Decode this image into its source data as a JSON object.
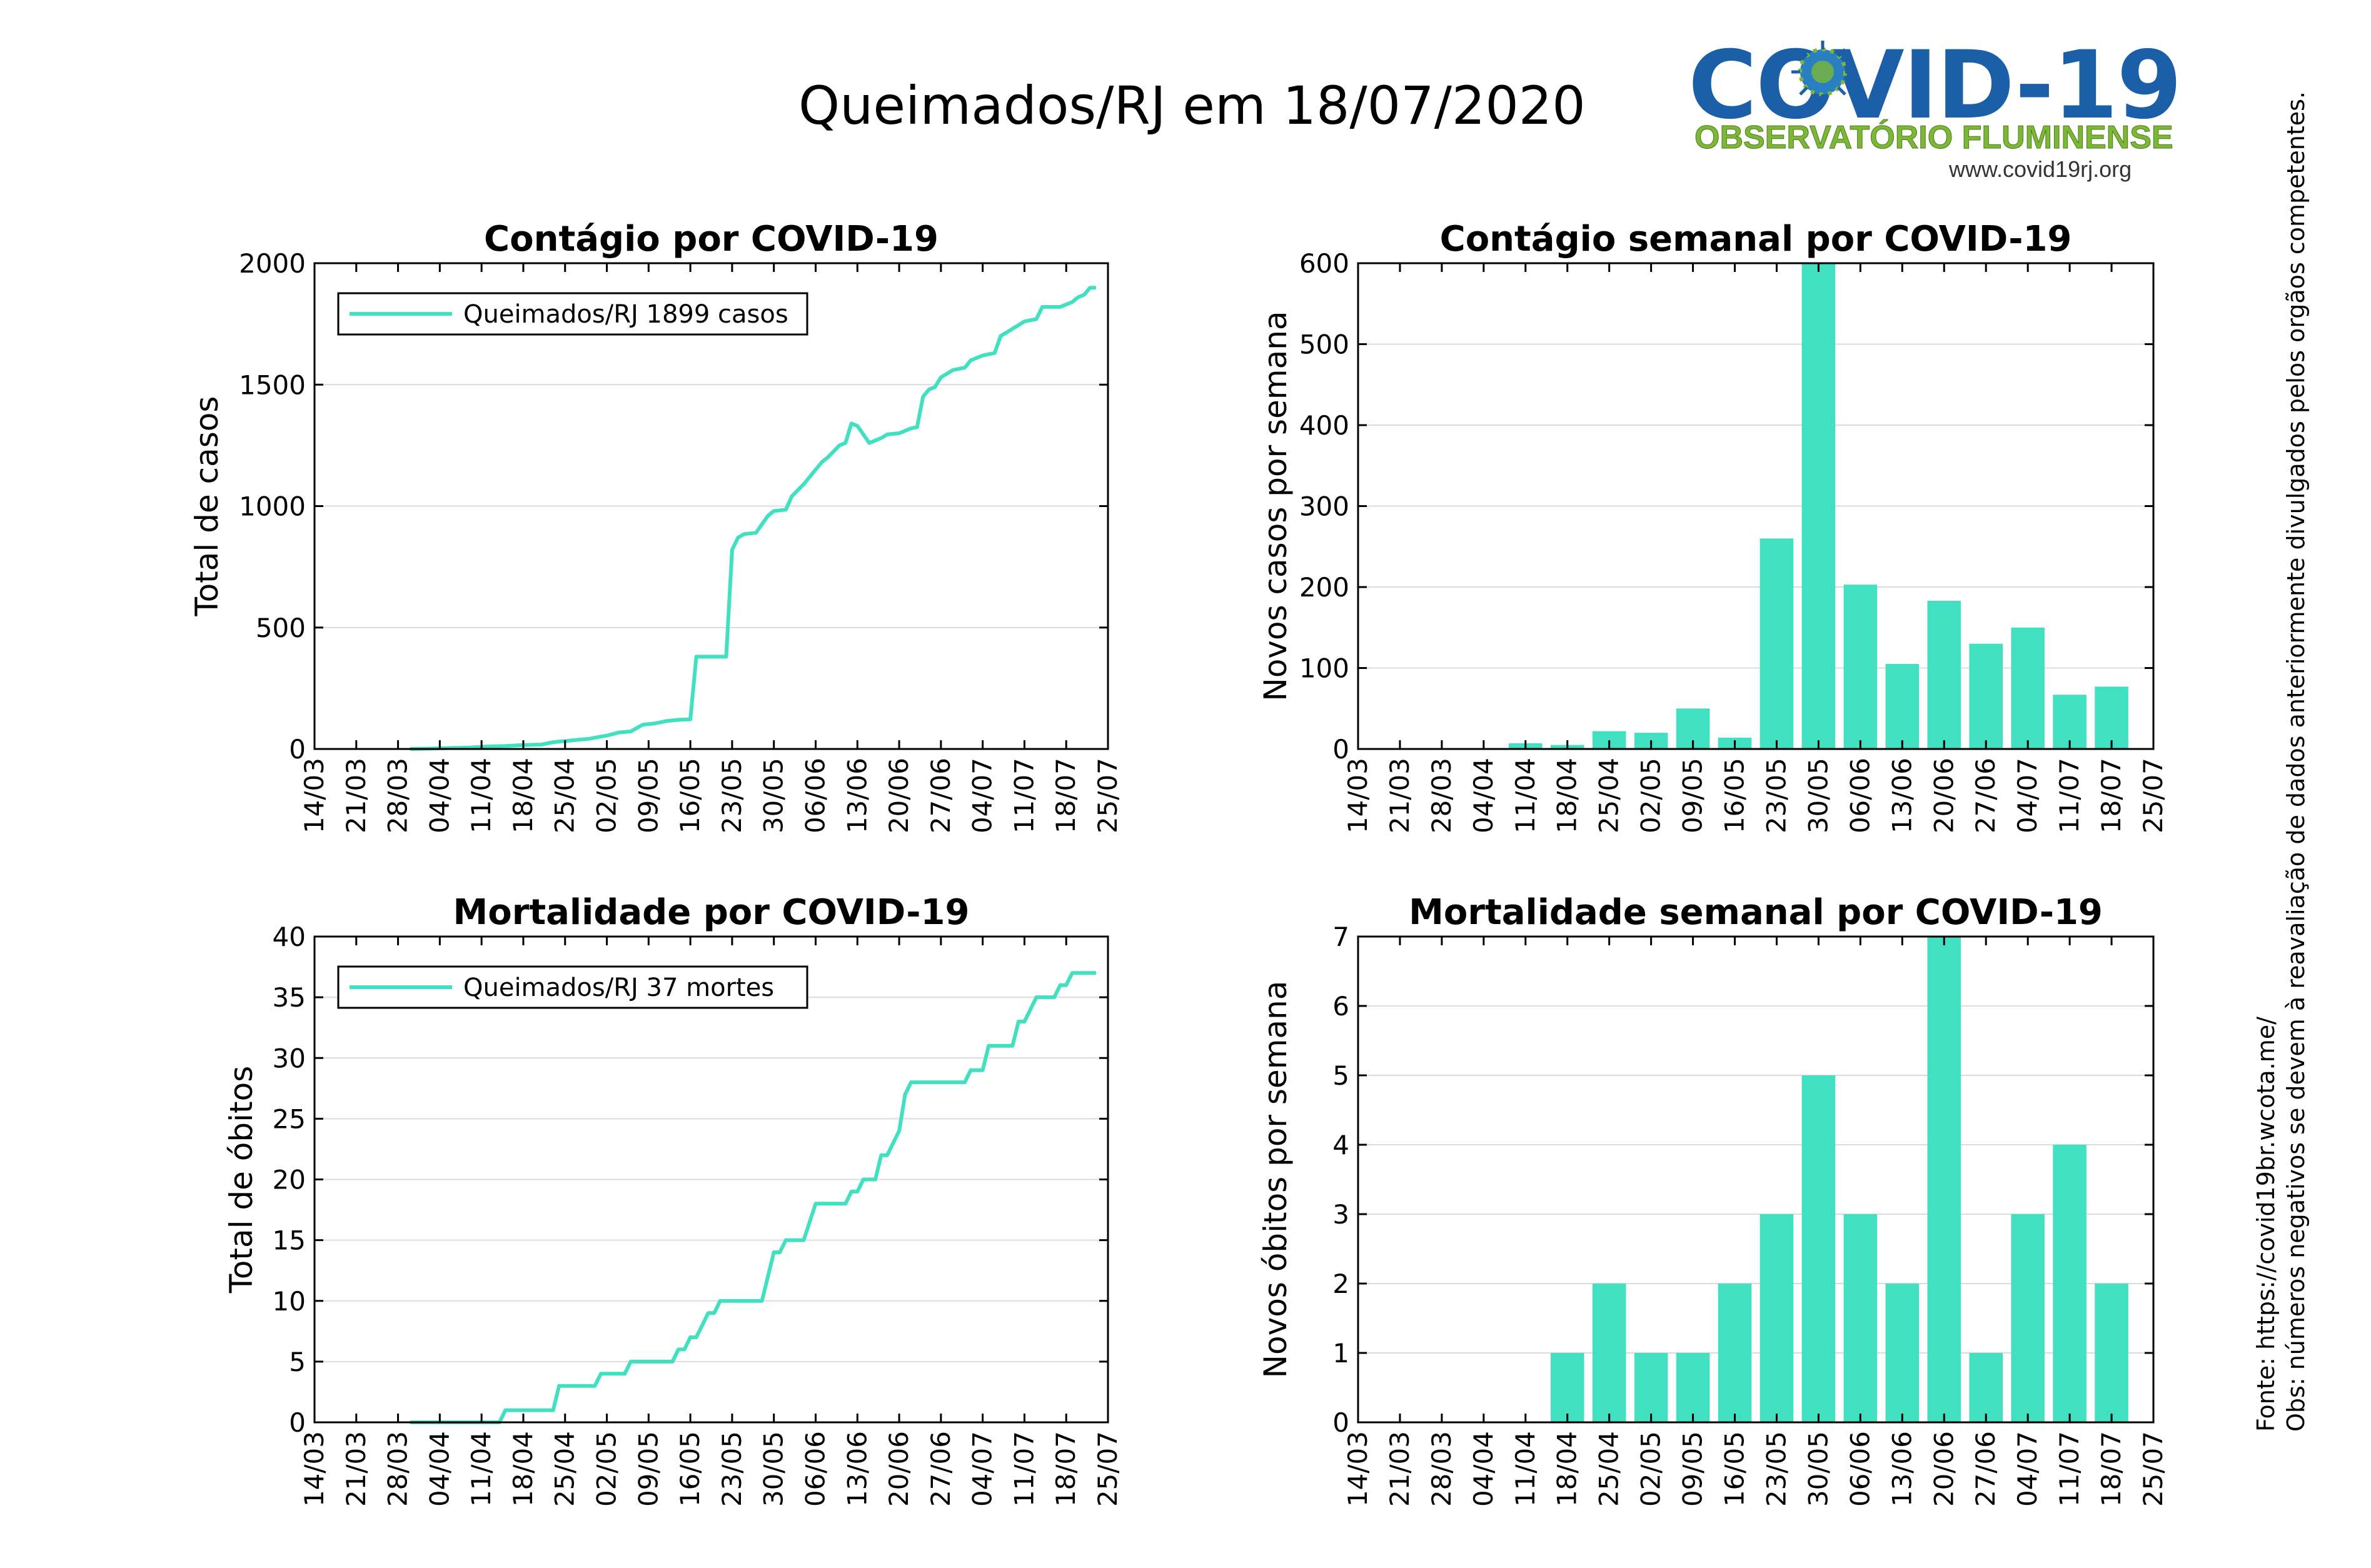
{
  "page": {
    "title": "Queimados/RJ em 18/07/2020",
    "logo": {
      "main_text": "COVID-19",
      "subtitle": "OBSERVATÓRIO FLUMINENSE",
      "url": "www.covid19rj.org",
      "icon": "virus-icon"
    },
    "source_note": "Fonte: https://covid19br.wcota.me/",
    "obs_note": "Obs: números negativos se devem à reavaliação de dados anteriormente divulgados pelos orgãos competentes."
  },
  "colors": {
    "series": "#40e0c0",
    "grid": "#dcdcdc",
    "axis": "#000000"
  },
  "chart_data": [
    {
      "id": "cases-cumulative",
      "type": "line",
      "title": "Contágio por COVID-19",
      "ylabel": "Total de casos",
      "xlabel": "",
      "x_tick_labels": [
        "14/03",
        "21/03",
        "28/03",
        "04/04",
        "11/04",
        "18/04",
        "25/04",
        "02/05",
        "09/05",
        "16/05",
        "23/05",
        "30/05",
        "06/06",
        "13/06",
        "20/06",
        "27/06",
        "04/07",
        "11/07",
        "18/07",
        "25/07"
      ],
      "xlim": [
        "2020-03-14",
        "2020-07-25"
      ],
      "ylim": [
        0,
        2000
      ],
      "y_ticks": [
        0,
        500,
        1000,
        1500,
        2000
      ],
      "grid": true,
      "legend": {
        "position": "top-left",
        "label": "Queimados/RJ  1899 casos"
      },
      "series": [
        {
          "name": "Queimados/RJ  1899 casos",
          "points": [
            [
              "2020-03-30",
              0
            ],
            [
              "2020-04-03",
              2
            ],
            [
              "2020-04-06",
              4
            ],
            [
              "2020-04-09",
              6
            ],
            [
              "2020-04-12",
              10
            ],
            [
              "2020-04-15",
              12
            ],
            [
              "2020-04-18",
              16
            ],
            [
              "2020-04-21",
              18
            ],
            [
              "2020-04-23",
              28
            ],
            [
              "2020-04-26",
              35
            ],
            [
              "2020-04-29",
              42
            ],
            [
              "2020-05-02",
              55
            ],
            [
              "2020-05-04",
              68
            ],
            [
              "2020-05-06",
              72
            ],
            [
              "2020-05-08",
              100
            ],
            [
              "2020-05-10",
              105
            ],
            [
              "2020-05-12",
              115
            ],
            [
              "2020-05-14",
              120
            ],
            [
              "2020-05-16",
              122
            ],
            [
              "2020-05-17",
              380
            ],
            [
              "2020-05-21",
              380
            ],
            [
              "2020-05-22",
              380
            ],
            [
              "2020-05-23",
              820
            ],
            [
              "2020-05-24",
              870
            ],
            [
              "2020-05-25",
              885
            ],
            [
              "2020-05-27",
              890
            ],
            [
              "2020-05-29",
              960
            ],
            [
              "2020-05-30",
              980
            ],
            [
              "2020-06-01",
              985
            ],
            [
              "2020-06-02",
              1040
            ],
            [
              "2020-06-04",
              1090
            ],
            [
              "2020-06-05",
              1120
            ],
            [
              "2020-06-07",
              1180
            ],
            [
              "2020-06-08",
              1200
            ],
            [
              "2020-06-10",
              1250
            ],
            [
              "2020-06-11",
              1260
            ],
            [
              "2020-06-12",
              1340
            ],
            [
              "2020-06-13",
              1330
            ],
            [
              "2020-06-15",
              1260
            ],
            [
              "2020-06-17",
              1280
            ],
            [
              "2020-06-18",
              1295
            ],
            [
              "2020-06-20",
              1300
            ],
            [
              "2020-06-22",
              1320
            ],
            [
              "2020-06-23",
              1325
            ],
            [
              "2020-06-24",
              1450
            ],
            [
              "2020-06-25",
              1480
            ],
            [
              "2020-06-26",
              1490
            ],
            [
              "2020-06-27",
              1530
            ],
            [
              "2020-06-29",
              1560
            ],
            [
              "2020-07-01",
              1570
            ],
            [
              "2020-07-02",
              1600
            ],
            [
              "2020-07-04",
              1620
            ],
            [
              "2020-07-06",
              1630
            ],
            [
              "2020-07-07",
              1700
            ],
            [
              "2020-07-09",
              1730
            ],
            [
              "2020-07-11",
              1760
            ],
            [
              "2020-07-13",
              1770
            ],
            [
              "2020-07-14",
              1820
            ],
            [
              "2020-07-17",
              1820
            ],
            [
              "2020-07-18",
              1830
            ],
            [
              "2020-07-19",
              1840
            ],
            [
              "2020-07-20",
              1860
            ],
            [
              "2020-07-21",
              1870
            ],
            [
              "2020-07-22",
              1899
            ],
            [
              "2020-07-23",
              1899
            ]
          ]
        }
      ]
    },
    {
      "id": "cases-weekly",
      "type": "bar",
      "title": "Contágio semanal por COVID-19",
      "ylabel": "Novos casos por semana",
      "xlabel": "",
      "x_tick_labels": [
        "14/03",
        "21/03",
        "28/03",
        "04/04",
        "11/04",
        "18/04",
        "25/04",
        "02/05",
        "09/05",
        "16/05",
        "23/05",
        "30/05",
        "06/06",
        "13/06",
        "20/06",
        "27/06",
        "04/07",
        "11/07",
        "18/07",
        "25/07"
      ],
      "ylim": [
        0,
        600
      ],
      "y_ticks": [
        0,
        100,
        200,
        300,
        400,
        500,
        600
      ],
      "grid": true,
      "categories": [
        "11/04",
        "18/04",
        "25/04",
        "02/05",
        "09/05",
        "16/05",
        "23/05",
        "30/05",
        "06/06",
        "13/06",
        "20/06",
        "27/06",
        "04/07",
        "11/07",
        "18/07"
      ],
      "values": [
        7,
        5,
        22,
        20,
        50,
        14,
        260,
        608,
        203,
        105,
        183,
        130,
        150,
        67,
        77
      ]
    },
    {
      "id": "deaths-cumulative",
      "type": "line",
      "title": "Mortalidade por COVID-19",
      "ylabel": "Total de óbitos",
      "xlabel": "",
      "x_tick_labels": [
        "14/03",
        "21/03",
        "28/03",
        "04/04",
        "11/04",
        "18/04",
        "25/04",
        "02/05",
        "09/05",
        "16/05",
        "23/05",
        "30/05",
        "06/06",
        "13/06",
        "20/06",
        "27/06",
        "04/07",
        "11/07",
        "18/07",
        "25/07"
      ],
      "xlim": [
        "2020-03-14",
        "2020-07-25"
      ],
      "ylim": [
        0,
        40
      ],
      "y_ticks": [
        0,
        5,
        10,
        15,
        20,
        25,
        30,
        35,
        40
      ],
      "grid": true,
      "legend": {
        "position": "top-left",
        "label": "Queimados/RJ  37 mortes"
      },
      "series": [
        {
          "name": "Queimados/RJ  37 mortes",
          "points": [
            [
              "2020-03-30",
              0
            ],
            [
              "2020-04-14",
              0
            ],
            [
              "2020-04-15",
              1
            ],
            [
              "2020-04-23",
              1
            ],
            [
              "2020-04-24",
              3
            ],
            [
              "2020-04-30",
              3
            ],
            [
              "2020-05-01",
              4
            ],
            [
              "2020-05-05",
              4
            ],
            [
              "2020-05-06",
              5
            ],
            [
              "2020-05-13",
              5
            ],
            [
              "2020-05-14",
              6
            ],
            [
              "2020-05-15",
              6
            ],
            [
              "2020-05-16",
              7
            ],
            [
              "2020-05-17",
              7
            ],
            [
              "2020-05-18",
              8
            ],
            [
              "2020-05-19",
              9
            ],
            [
              "2020-05-20",
              9
            ],
            [
              "2020-05-21",
              10
            ],
            [
              "2020-05-28",
              10
            ],
            [
              "2020-05-30",
              14
            ],
            [
              "2020-05-31",
              14
            ],
            [
              "2020-06-01",
              15
            ],
            [
              "2020-06-04",
              15
            ],
            [
              "2020-06-06",
              18
            ],
            [
              "2020-06-11",
              18
            ],
            [
              "2020-06-12",
              19
            ],
            [
              "2020-06-13",
              19
            ],
            [
              "2020-06-14",
              20
            ],
            [
              "2020-06-16",
              20
            ],
            [
              "2020-06-17",
              22
            ],
            [
              "2020-06-18",
              22
            ],
            [
              "2020-06-19",
              23
            ],
            [
              "2020-06-20",
              24
            ],
            [
              "2020-06-21",
              27
            ],
            [
              "2020-06-22",
              28
            ],
            [
              "2020-07-01",
              28
            ],
            [
              "2020-07-02",
              29
            ],
            [
              "2020-07-04",
              29
            ],
            [
              "2020-07-05",
              31
            ],
            [
              "2020-07-09",
              31
            ],
            [
              "2020-07-10",
              33
            ],
            [
              "2020-07-11",
              33
            ],
            [
              "2020-07-12",
              34
            ],
            [
              "2020-07-13",
              35
            ],
            [
              "2020-07-16",
              35
            ],
            [
              "2020-07-17",
              36
            ],
            [
              "2020-07-18",
              36
            ],
            [
              "2020-07-19",
              37
            ],
            [
              "2020-07-23",
              37
            ]
          ]
        }
      ]
    },
    {
      "id": "deaths-weekly",
      "type": "bar",
      "title": "Mortalidade semanal por COVID-19",
      "ylabel": "Novos óbitos por semana",
      "xlabel": "",
      "x_tick_labels": [
        "14/03",
        "21/03",
        "28/03",
        "04/04",
        "11/04",
        "18/04",
        "25/04",
        "02/05",
        "09/05",
        "16/05",
        "23/05",
        "30/05",
        "06/06",
        "13/06",
        "20/06",
        "27/06",
        "04/07",
        "11/07",
        "18/07",
        "25/07"
      ],
      "ylim": [
        0,
        7
      ],
      "y_ticks": [
        0,
        1,
        2,
        3,
        4,
        5,
        6,
        7
      ],
      "grid": true,
      "categories": [
        "18/04",
        "25/04",
        "02/05",
        "09/05",
        "16/05",
        "23/05",
        "30/05",
        "06/06",
        "13/06",
        "20/06",
        "27/06",
        "04/07",
        "11/07",
        "18/07"
      ],
      "values": [
        1,
        2,
        1,
        1,
        2,
        3,
        5,
        3,
        2,
        7,
        1,
        3,
        4,
        2
      ]
    }
  ]
}
